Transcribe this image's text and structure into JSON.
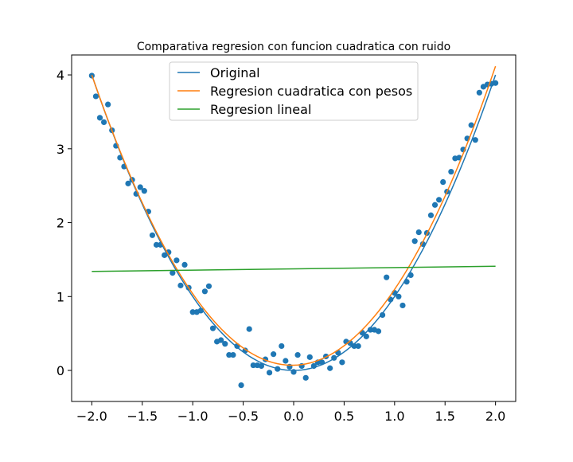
{
  "chart_data": {
    "type": "scatter",
    "title": "Comparativa regresion con funcion cuadratica con ruido",
    "xlabel": "",
    "ylabel": "",
    "xlim": [
      -2.2,
      2.2
    ],
    "ylim": [
      -0.42,
      4.27
    ],
    "xticks": [
      -2.0,
      -1.5,
      -1.0,
      -0.5,
      0.0,
      0.5,
      1.0,
      1.5,
      2.0
    ],
    "xtick_labels": [
      "−2.0",
      "−1.5",
      "−1.0",
      "−0.5",
      "0.0",
      "0.5",
      "1.0",
      "1.5",
      "2.0"
    ],
    "yticks": [
      0,
      1,
      2,
      3,
      4
    ],
    "ytick_labels": [
      "0",
      "1",
      "2",
      "3",
      "4"
    ],
    "grid": false,
    "legend_position": "top-center",
    "scatter_color": "#1f77b4",
    "points": {
      "x": [
        -2.0,
        -1.96,
        -1.92,
        -1.88,
        -1.84,
        -1.8,
        -1.76,
        -1.72,
        -1.68,
        -1.64,
        -1.6,
        -1.56,
        -1.52,
        -1.48,
        -1.44,
        -1.4,
        -1.36,
        -1.32,
        -1.28,
        -1.24,
        -1.2,
        -1.16,
        -1.12,
        -1.08,
        -1.04,
        -1.0,
        -0.96,
        -0.92,
        -0.88,
        -0.84,
        -0.8,
        -0.76,
        -0.72,
        -0.68,
        -0.64,
        -0.6,
        -0.56,
        -0.52,
        -0.48,
        -0.44,
        -0.4,
        -0.36,
        -0.32,
        -0.28,
        -0.24,
        -0.2,
        -0.16,
        -0.12,
        -0.08,
        -0.04,
        0.0,
        0.04,
        0.08,
        0.12,
        0.16,
        0.2,
        0.24,
        0.28,
        0.32,
        0.36,
        0.4,
        0.44,
        0.48,
        0.52,
        0.56,
        0.6,
        0.64,
        0.68,
        0.72,
        0.76,
        0.8,
        0.84,
        0.88,
        0.92,
        0.96,
        1.0,
        1.04,
        1.08,
        1.12,
        1.16,
        1.2,
        1.24,
        1.28,
        1.32,
        1.36,
        1.4,
        1.44,
        1.48,
        1.52,
        1.56,
        1.6,
        1.64,
        1.68,
        1.72,
        1.76,
        1.8,
        1.84,
        1.88,
        1.92,
        1.96,
        2.0
      ],
      "y": [
        3.99,
        3.71,
        3.42,
        3.36,
        3.6,
        3.25,
        3.04,
        2.88,
        2.76,
        2.53,
        2.58,
        2.39,
        2.48,
        2.43,
        2.15,
        1.83,
        1.7,
        1.7,
        1.56,
        1.6,
        1.32,
        1.49,
        1.15,
        1.43,
        1.12,
        0.79,
        0.79,
        0.81,
        1.07,
        1.14,
        0.57,
        0.39,
        0.41,
        0.36,
        0.21,
        0.21,
        0.33,
        -0.2,
        0.27,
        0.56,
        0.07,
        0.07,
        0.06,
        0.15,
        -0.03,
        0.22,
        0.02,
        0.33,
        0.13,
        0.05,
        -0.02,
        0.21,
        0.06,
        -0.1,
        0.18,
        0.06,
        0.11,
        0.11,
        0.19,
        0.03,
        0.17,
        0.24,
        0.11,
        0.39,
        0.37,
        0.33,
        0.33,
        0.51,
        0.46,
        0.55,
        0.55,
        0.53,
        0.75,
        1.26,
        0.96,
        1.05,
        1.0,
        0.88,
        1.2,
        1.29,
        1.75,
        1.87,
        1.71,
        1.86,
        2.1,
        2.24,
        2.31,
        2.55,
        2.42,
        2.69,
        2.87,
        2.88,
        2.99,
        3.14,
        3.32,
        3.12,
        3.76,
        3.84,
        3.87,
        3.88,
        3.89
      ]
    },
    "series": [
      {
        "name": "Original",
        "color": "#1f77b4",
        "kind": "quadratic",
        "coef": [
          1.0,
          0.0,
          0.0
        ]
      },
      {
        "name": "Regresion cuadratica con pesos",
        "color": "#ff7f0e",
        "kind": "quadratic",
        "coef": [
          0.997,
          0.03,
          0.07
        ]
      },
      {
        "name": "Regresion lineal",
        "color": "#2ca02c",
        "kind": "linear",
        "points": [
          [
            -2.0,
            1.34
          ],
          [
            2.0,
            1.41
          ]
        ]
      }
    ]
  }
}
